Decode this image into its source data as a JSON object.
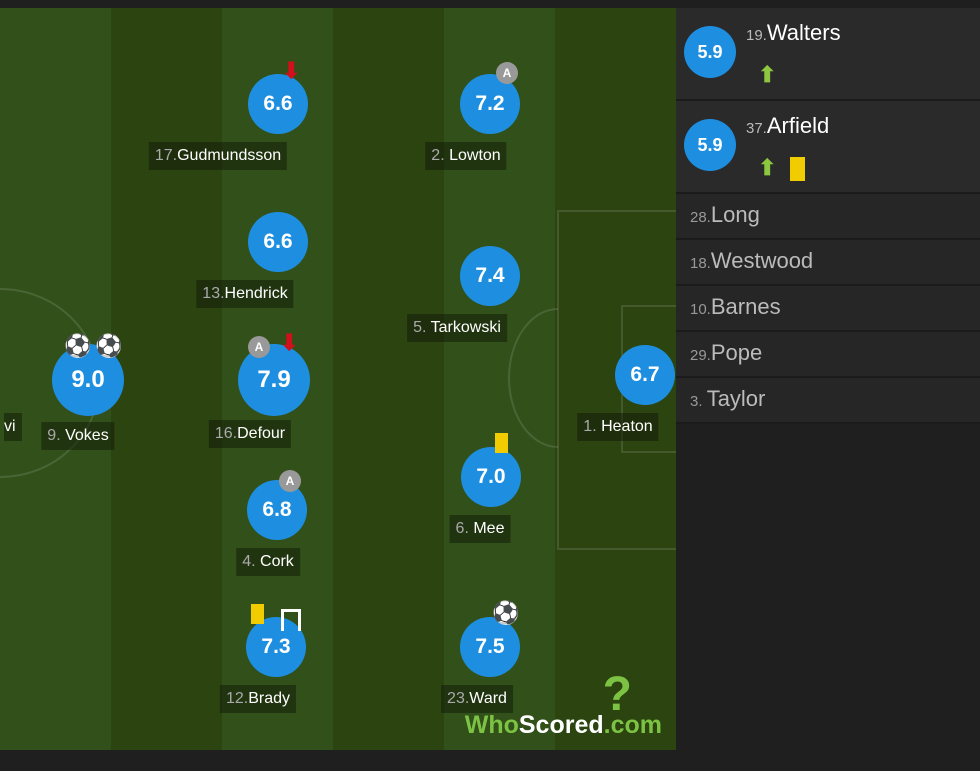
{
  "colors": {
    "rating": "#1e8fe0",
    "pitch": "#2f4a12",
    "yellow_card": "#f1cc00",
    "sub_on": "#8dc63f",
    "sub_off": "#d0101a"
  },
  "pitch": {
    "partial_left_label": "vi",
    "players": [
      {
        "num": "17.",
        "name": "Gudmundsson",
        "rating": "6.6",
        "icons": [
          "sub-off-arrow"
        ]
      },
      {
        "num": "2. ",
        "name": "Lowton",
        "rating": "7.2",
        "icons": [
          "captain-badge"
        ],
        "badge": "A"
      },
      {
        "num": "13.",
        "name": "Hendrick",
        "rating": "6.6",
        "icons": []
      },
      {
        "num": "5. ",
        "name": "Tarkowski",
        "rating": "7.4",
        "icons": []
      },
      {
        "num": "9. ",
        "name": "Vokes",
        "rating": "9.0",
        "icons": [
          "goal",
          "goal"
        ]
      },
      {
        "num": "16.",
        "name": "Defour",
        "rating": "7.9",
        "icons": [
          "captain-badge",
          "sub-off-arrow"
        ],
        "badge": "A"
      },
      {
        "num": "1. ",
        "name": "Heaton",
        "rating": "6.7",
        "icons": []
      },
      {
        "num": "6. ",
        "name": "Mee",
        "rating": "7.0",
        "icons": [
          "yellow-card"
        ]
      },
      {
        "num": "4. ",
        "name": "Cork",
        "rating": "6.8",
        "icons": [
          "captain-badge"
        ],
        "badge": "A"
      },
      {
        "num": "12.",
        "name": "Brady",
        "rating": "7.3",
        "icons": [
          "yellow-card",
          "assist"
        ]
      },
      {
        "num": "23.",
        "name": "Ward",
        "rating": "7.5",
        "icons": [
          "goal"
        ]
      }
    ],
    "logo": {
      "who": "Who",
      "scored": "Scored",
      "dotcom": ".com"
    }
  },
  "subs": {
    "used": [
      {
        "num": "19.",
        "name": "Walters",
        "rating": "5.9",
        "icons": [
          "sub-on-arrow"
        ]
      },
      {
        "num": "37.",
        "name": "Arfield",
        "rating": "5.9",
        "icons": [
          "sub-on-arrow",
          "yellow-card"
        ]
      }
    ],
    "unused": [
      {
        "num": "28.",
        "name": "Long"
      },
      {
        "num": "18.",
        "name": "Westwood"
      },
      {
        "num": "10.",
        "name": "Barnes"
      },
      {
        "num": "29.",
        "name": "Pope"
      },
      {
        "num": "3. ",
        "name": "Taylor"
      }
    ]
  }
}
